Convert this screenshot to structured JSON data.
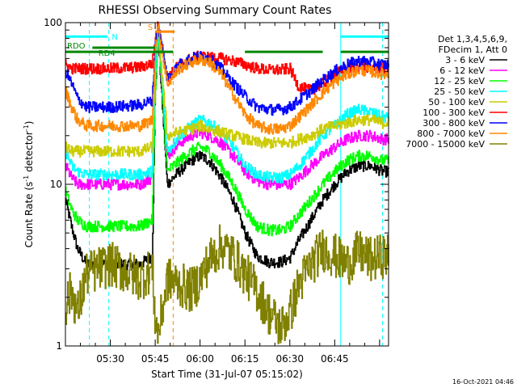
{
  "chart_data": {
    "type": "line",
    "title": "RHESSI Observing Summary Count Rates",
    "xlabel": "Start Time (31-Jul-07 05:15:02)",
    "ylabel": "Count Rate (s",
    "ylabel_exp": "-1",
    "ylabel_tail": " detector",
    "ylabel_close": ")",
    "y_scale": "log",
    "ylim": [
      1,
      100
    ],
    "xlim_minutes": [
      0,
      108
    ],
    "x_ticks": [
      {
        "label": "05:30",
        "minutes": 15
      },
      {
        "label": "05:45",
        "minutes": 30
      },
      {
        "label": "06:00",
        "minutes": 45
      },
      {
        "label": "06:15",
        "minutes": 60
      },
      {
        "label": "06:30",
        "minutes": 75
      },
      {
        "label": "06:45",
        "minutes": 90
      }
    ],
    "y_ticks": [
      {
        "label": "1",
        "value": 1
      },
      {
        "label": "10",
        "value": 10
      },
      {
        "label": "100",
        "value": 100
      }
    ],
    "legend": {
      "placement": "right",
      "header": [
        "Det 1,3,4,5,6,9,",
        "FDecim 1, Att 0"
      ]
    },
    "series": [
      {
        "name": "3 - 6 keV",
        "color": "#000000",
        "x": [
          0,
          2,
          4,
          7,
          15,
          25,
          29,
          30,
          31,
          34,
          38,
          42,
          45,
          48,
          52,
          56,
          60,
          64,
          68,
          72,
          75,
          78,
          82,
          86,
          90,
          94,
          98,
          102,
          106
        ],
        "y": [
          8,
          5.5,
          4,
          3.2,
          3.2,
          3.2,
          3.6,
          40,
          80,
          10,
          12,
          14,
          15,
          14,
          11,
          8,
          5,
          3.6,
          3.3,
          3.3,
          3.5,
          4.5,
          6,
          8,
          10,
          12,
          13,
          13,
          12
        ]
      },
      {
        "name": "6 - 12 keV",
        "color": "#ff00ff",
        "x": [
          0,
          2,
          4,
          7,
          15,
          25,
          29,
          30,
          31,
          34,
          38,
          42,
          45,
          48,
          52,
          56,
          60,
          64,
          68,
          72,
          75,
          78,
          82,
          86,
          90,
          94,
          98,
          102,
          106
        ],
        "y": [
          13,
          11,
          10,
          10,
          10,
          10,
          11,
          45,
          85,
          15,
          18,
          20,
          21,
          20,
          18,
          15,
          12,
          10.5,
          10,
          10,
          10,
          11,
          13,
          15,
          17,
          19,
          20,
          20,
          19
        ]
      },
      {
        "name": "12 - 25 keV",
        "color": "#00ff00",
        "x": [
          0,
          2,
          4,
          7,
          15,
          25,
          29,
          30,
          31,
          34,
          38,
          42,
          45,
          48,
          52,
          56,
          60,
          64,
          68,
          72,
          75,
          78,
          82,
          86,
          90,
          94,
          98,
          102,
          106
        ],
        "y": [
          9,
          7,
          6,
          5.5,
          5.5,
          5.5,
          6,
          40,
          85,
          12,
          14,
          16,
          17,
          16,
          13,
          10,
          7,
          5.5,
          5.2,
          5.2,
          5.5,
          6.5,
          8,
          10,
          12,
          14,
          15,
          15,
          14
        ]
      },
      {
        "name": "25 - 50 keV",
        "color": "#00ffff",
        "x": [
          0,
          2,
          4,
          7,
          15,
          25,
          29,
          30,
          31,
          34,
          38,
          42,
          45,
          48,
          52,
          56,
          60,
          64,
          68,
          72,
          75,
          78,
          82,
          86,
          90,
          94,
          98,
          102,
          106
        ],
        "y": [
          16,
          13,
          12,
          11.5,
          11.5,
          11.5,
          12,
          50,
          90,
          16,
          20,
          23,
          25,
          24,
          21,
          17,
          13,
          11.5,
          11,
          11,
          11.5,
          13,
          16,
          20,
          23,
          27,
          29,
          28,
          26
        ]
      },
      {
        "name": "50 - 100 keV",
        "color": "#cccc00",
        "x": [
          0,
          2,
          4,
          7,
          15,
          25,
          29,
          30,
          31,
          34,
          38,
          42,
          45,
          48,
          52,
          56,
          60,
          64,
          68,
          72,
          75,
          78,
          82,
          86,
          90,
          94,
          98,
          102,
          106
        ],
        "y": [
          17,
          16,
          16,
          16,
          16,
          16,
          17,
          60,
          95,
          20,
          21,
          22,
          23,
          22,
          21,
          20,
          19,
          18,
          18,
          18,
          18,
          19,
          20,
          22,
          23,
          24,
          25,
          25,
          24
        ]
      },
      {
        "name": "100 - 300 keV",
        "color": "#ff0000",
        "x": [
          0,
          2,
          4,
          7,
          15,
          25,
          29,
          30,
          31,
          34,
          38,
          42,
          45,
          48,
          52,
          56,
          60,
          64,
          68,
          72,
          75,
          78,
          82,
          86,
          90,
          94,
          98,
          102,
          106
        ],
        "y": [
          55,
          52,
          52,
          52,
          52,
          53,
          56,
          80,
          98,
          45,
          55,
          60,
          62,
          61,
          60,
          58,
          55,
          52,
          51,
          51,
          52,
          40,
          38,
          42,
          48,
          52,
          54,
          53,
          52
        ]
      },
      {
        "name": "300 - 800 keV",
        "color": "#0000ff",
        "x": [
          0,
          2,
          4,
          7,
          15,
          25,
          29,
          30,
          31,
          34,
          38,
          42,
          45,
          48,
          52,
          56,
          60,
          64,
          68,
          72,
          75,
          78,
          82,
          86,
          90,
          94,
          98,
          102,
          106
        ],
        "y": [
          50,
          42,
          34,
          30,
          30,
          31,
          33,
          75,
          96,
          45,
          55,
          60,
          62,
          60,
          52,
          42,
          35,
          30,
          29,
          29,
          30,
          33,
          38,
          44,
          50,
          55,
          58,
          57,
          55
        ]
      },
      {
        "name": "800 - 7000 keV",
        "color": "#ff8800",
        "x": [
          0,
          2,
          4,
          7,
          15,
          25,
          29,
          30,
          31,
          34,
          38,
          42,
          45,
          48,
          52,
          56,
          60,
          64,
          68,
          72,
          75,
          78,
          82,
          86,
          90,
          94,
          98,
          102,
          106
        ],
        "y": [
          38,
          30,
          25,
          23,
          23,
          23,
          25,
          70,
          94,
          42,
          52,
          57,
          59,
          57,
          48,
          36,
          27,
          23,
          22,
          22,
          23,
          26,
          31,
          37,
          43,
          48,
          51,
          50,
          48
        ]
      },
      {
        "name": "7000 - 15000 keV",
        "color": "#808000",
        "x": [
          0,
          2,
          4,
          7,
          15,
          25,
          29,
          30,
          31,
          34,
          38,
          42,
          45,
          48,
          52,
          56,
          60,
          64,
          68,
          72,
          75,
          78,
          82,
          86,
          90,
          94,
          98,
          102,
          106
        ],
        "y": [
          1.8,
          2.2,
          1.6,
          2.8,
          3.2,
          2.6,
          3.0,
          1.4,
          1.2,
          2.6,
          2.4,
          2.2,
          2.6,
          3.4,
          4.2,
          3.6,
          2.8,
          2.2,
          1.6,
          1.3,
          1.6,
          2.4,
          3.2,
          4.0,
          3.6,
          3.2,
          3.8,
          3.4,
          3.6
        ]
      }
    ],
    "flag_bars": [
      {
        "label": "N",
        "color": "#00ffff",
        "segments": [
          [
            0,
            14
          ],
          [
            92,
            108
          ]
        ],
        "level": 82
      },
      {
        "label": "S",
        "color": "#ff8800",
        "segments": [
          [
            30,
            36.5
          ]
        ],
        "level": 88
      },
      {
        "label": "RDO",
        "color": "#008800",
        "segments": [
          [
            0,
            36
          ],
          [
            60,
            86
          ],
          [
            92,
            108
          ]
        ],
        "level": 66
      },
      {
        "label": "RD4",
        "color": "#008800",
        "segments": [
          [
            9,
            30
          ]
        ],
        "level": 70
      }
    ],
    "vertical_markers": [
      {
        "minutes": 8,
        "color": "#00ffff",
        "style": "dash"
      },
      {
        "minutes": 14.5,
        "color": "#00ffff",
        "style": "dash"
      },
      {
        "minutes": 36,
        "color": "#ff8800",
        "style": "dash"
      },
      {
        "minutes": 92,
        "color": "#00ffff",
        "style": "solid"
      },
      {
        "minutes": 106,
        "color": "#00ffff",
        "style": "dash"
      }
    ],
    "footer_timestamp": "16-Oct-2021 04:46"
  }
}
